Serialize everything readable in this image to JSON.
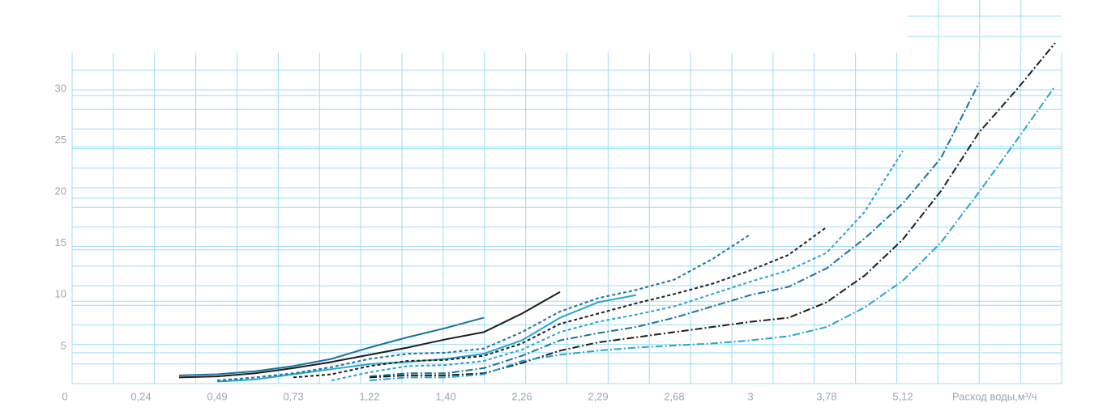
{
  "chart_data": {
    "type": "line",
    "x_label": "Расход воды,м³/ч",
    "categories": [
      "0",
      null,
      "0,24",
      null,
      "0,49",
      null,
      "0,73",
      null,
      "1,22",
      null,
      "1,40",
      null,
      "2,26",
      null,
      "2,29",
      null,
      "2,68",
      null,
      "3",
      null,
      "3,78",
      null,
      "5,12",
      null,
      null,
      null,
      null
    ],
    "ylim": [
      2,
      36
    ],
    "yticks": [
      5,
      10,
      15,
      20,
      25,
      30
    ],
    "grid": true,
    "series": [
      {
        "color": "#19729c",
        "style": "solid",
        "values": [
          null,
          null,
          null,
          2.8,
          2.9,
          3.2,
          3.7,
          4.4,
          5.5,
          6.5,
          7.4,
          8.4,
          null,
          null,
          null,
          null,
          null,
          null,
          null,
          null,
          null,
          null,
          null,
          null,
          null,
          null,
          null
        ]
      },
      {
        "color": "#1d1d1f",
        "style": "solid",
        "values": [
          null,
          null,
          null,
          2.6,
          2.7,
          3,
          3.5,
          4.1,
          4.8,
          5.5,
          6.3,
          7,
          8.8,
          10.9,
          null,
          null,
          null,
          null,
          null,
          null,
          null,
          null,
          null,
          null,
          null,
          null,
          null
        ]
      },
      {
        "color": "#2aa3c9",
        "style": "solid",
        "values": [
          null,
          null,
          null,
          null,
          2.2,
          2.4,
          2.9,
          3.4,
          3.9,
          4.1,
          4.4,
          4.9,
          6.2,
          8.4,
          9.9,
          10.6,
          null,
          null,
          null,
          null,
          null,
          null,
          null,
          null,
          null,
          null,
          null
        ]
      },
      {
        "color": "#19729c",
        "style": "dashed",
        "values": [
          null,
          null,
          null,
          null,
          2.3,
          2.6,
          3,
          3.6,
          4.4,
          4.9,
          5,
          5.4,
          7,
          9,
          10.3,
          11.1,
          12.1,
          14.1,
          16.5,
          null,
          null,
          null,
          null,
          null,
          null,
          null,
          null
        ]
      },
      {
        "color": "#1d1d1f",
        "style": "dashed",
        "values": [
          null,
          null,
          null,
          null,
          null,
          null,
          2.6,
          2.9,
          3.7,
          4.2,
          4.3,
          4.7,
          5.9,
          7.8,
          8.8,
          9.8,
          10.7,
          11.7,
          13,
          14.5,
          17.2,
          null,
          null,
          null,
          null,
          null,
          null
        ]
      },
      {
        "color": "#2aa3c9",
        "style": "dashed",
        "values": [
          null,
          null,
          null,
          null,
          null,
          null,
          null,
          2.3,
          3.1,
          3.7,
          3.8,
          4.2,
          5.3,
          7,
          8,
          8.7,
          9.5,
          10.7,
          11.9,
          13,
          14.7,
          18.7,
          24.6,
          null,
          null,
          null,
          null
        ]
      },
      {
        "color": "#19729c",
        "style": "dashdot",
        "values": [
          null,
          null,
          null,
          null,
          null,
          null,
          null,
          null,
          2.7,
          3,
          3,
          3.5,
          4.7,
          6.2,
          6.9,
          7.5,
          8.4,
          9.5,
          10.6,
          11.4,
          13.2,
          16.1,
          19.5,
          23.9,
          31.2,
          null,
          null
        ]
      },
      {
        "color": "#1d1d1f",
        "style": "dashdot",
        "values": [
          null,
          null,
          null,
          null,
          null,
          null,
          null,
          null,
          2.6,
          2.8,
          2.8,
          3,
          4,
          5.2,
          6,
          6.5,
          7,
          7.5,
          8,
          8.4,
          9.9,
          12.5,
          16,
          20.7,
          26.4,
          30.6,
          35.1
        ]
      },
      {
        "color": "#2aa3c9",
        "style": "dashdot",
        "values": [
          null,
          null,
          null,
          null,
          null,
          null,
          null,
          null,
          2.3,
          2.6,
          2.6,
          2.9,
          4.2,
          4.8,
          5.2,
          5.5,
          5.7,
          5.9,
          6.2,
          6.6,
          7.5,
          9.4,
          12,
          15.7,
          20.6,
          25.7,
          30.9
        ]
      }
    ]
  }
}
